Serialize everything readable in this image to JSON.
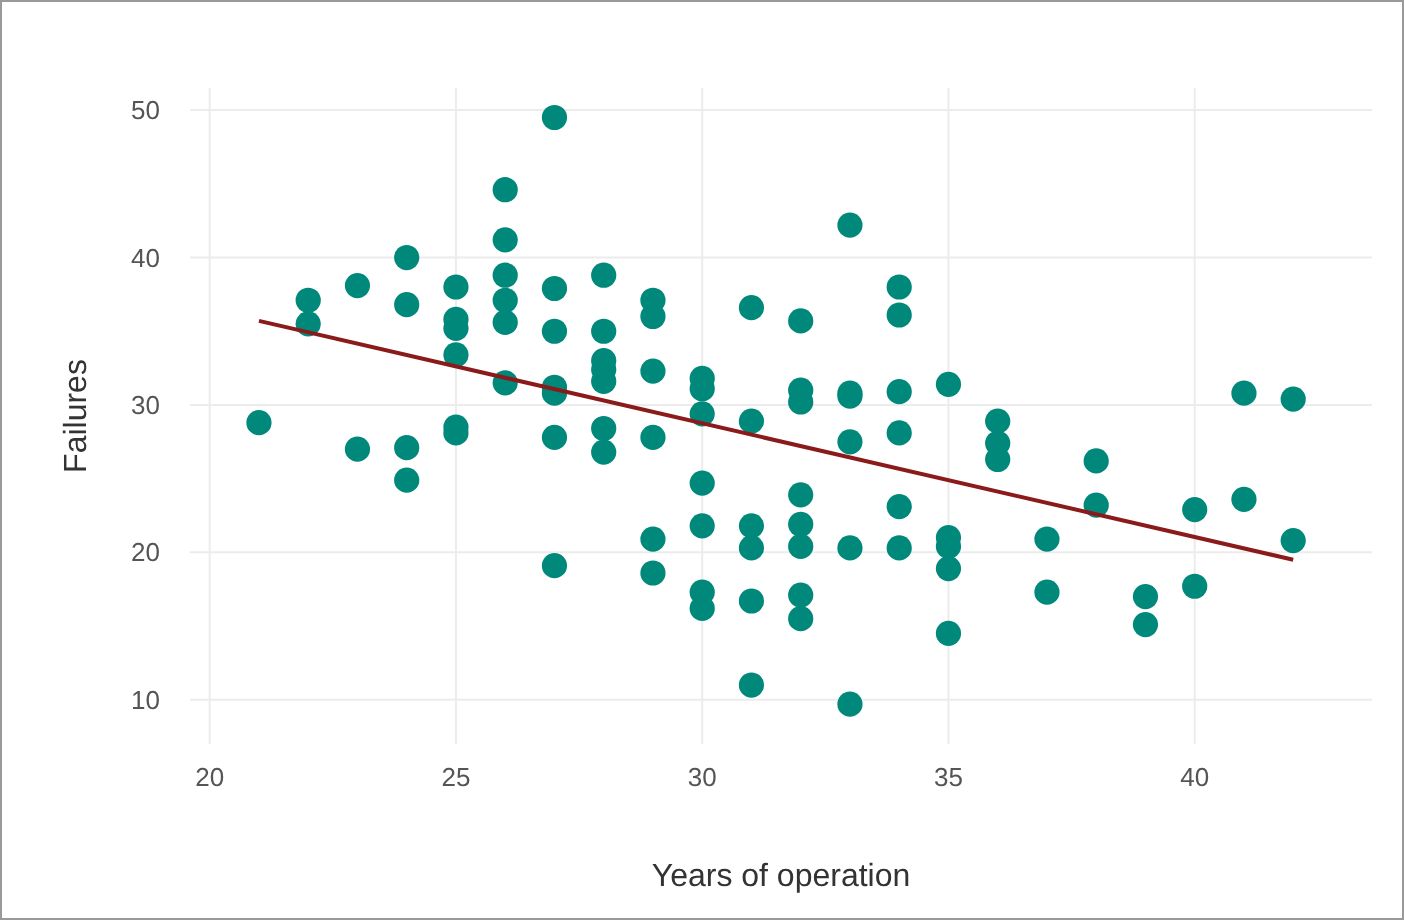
{
  "chart_data": {
    "type": "scatter",
    "xlabel": "Years of operation",
    "ylabel": "Failures",
    "xlim": [
      19.6,
      43.6
    ],
    "ylim": [
      7,
      51.5
    ],
    "xticks": [
      20,
      25,
      30,
      35,
      40
    ],
    "yticks": [
      10,
      20,
      30,
      40,
      50
    ],
    "grid": true,
    "series": [
      {
        "color": "#00897b",
        "marker": "circle",
        "x": [
          21,
          22,
          22,
          23,
          23,
          24,
          24,
          24,
          24,
          25,
          25,
          25,
          25,
          25,
          25,
          26,
          26,
          26,
          26,
          26,
          26,
          27,
          27,
          27,
          27,
          27,
          27,
          27,
          28,
          28,
          28,
          28,
          28,
          28,
          28,
          29,
          29,
          29,
          29,
          29,
          29,
          30,
          30,
          30,
          30,
          30,
          30,
          30,
          31,
          31,
          31,
          31,
          31,
          31,
          32,
          32,
          32,
          32,
          32,
          32,
          32,
          32,
          33,
          33,
          33,
          33,
          33,
          33,
          34,
          34,
          34,
          34,
          34,
          34,
          35,
          35,
          35,
          35,
          35,
          36,
          36,
          36,
          37,
          37,
          38,
          38,
          39,
          39,
          40,
          40,
          41,
          41,
          42,
          42
        ],
        "values": [
          28.8,
          37.1,
          35.5,
          38.1,
          27.0,
          40.0,
          36.8,
          27.1,
          24.9,
          38.0,
          35.8,
          35.2,
          33.4,
          28.5,
          28.1,
          44.6,
          41.2,
          38.8,
          37.1,
          35.6,
          31.5,
          49.5,
          37.9,
          35.0,
          31.2,
          30.8,
          27.8,
          19.1,
          38.8,
          35.0,
          33.0,
          32.4,
          31.6,
          28.4,
          26.8,
          37.1,
          36.0,
          32.3,
          27.8,
          20.9,
          18.6,
          31.8,
          31.1,
          29.4,
          24.7,
          21.8,
          17.3,
          16.2,
          36.6,
          28.9,
          21.8,
          20.3,
          16.7,
          11.0,
          35.7,
          31.0,
          30.2,
          23.9,
          21.9,
          20.4,
          17.1,
          15.5,
          42.2,
          30.8,
          30.6,
          27.5,
          20.3,
          9.7,
          38.0,
          36.1,
          30.9,
          28.1,
          23.1,
          20.3,
          31.4,
          21.0,
          20.4,
          18.9,
          14.5,
          28.9,
          27.4,
          26.3,
          20.9,
          17.3,
          26.2,
          23.2,
          17.0,
          15.1,
          22.9,
          17.7,
          30.8,
          23.6,
          30.4,
          20.8
        ]
      },
      {
        "type": "line",
        "color": "#8b1a1a",
        "x": [
          21,
          42
        ],
        "values": [
          35.7,
          19.5
        ],
        "marker": "none",
        "line_style": "solid"
      }
    ]
  }
}
